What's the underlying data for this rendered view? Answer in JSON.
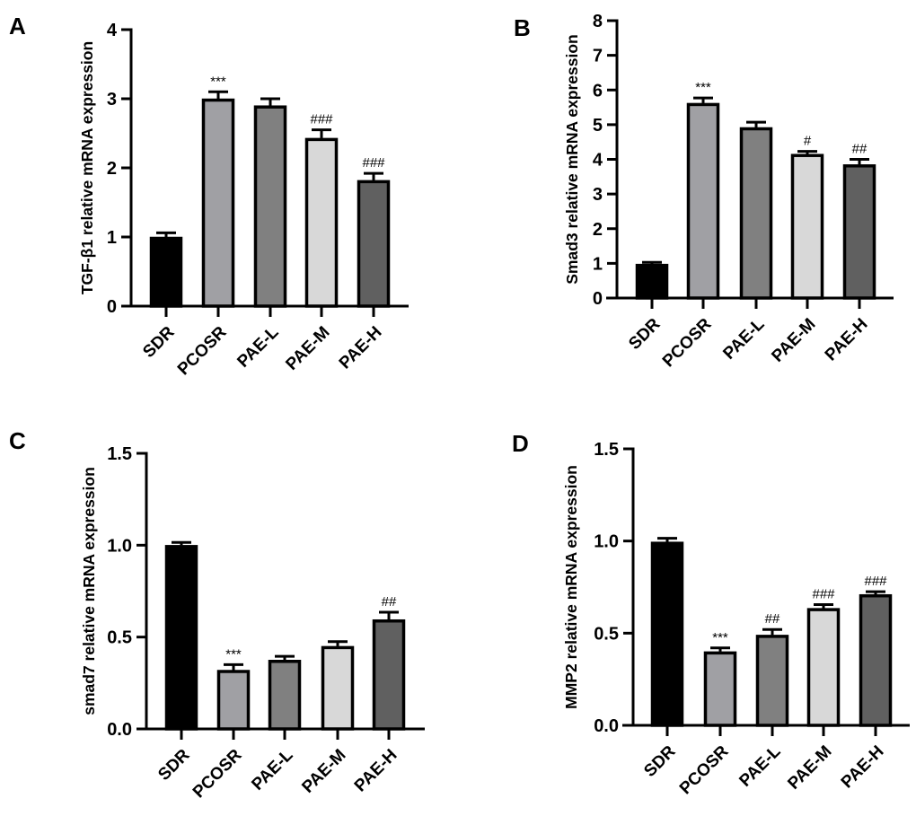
{
  "categories": [
    "SDR",
    "PCOSR",
    "PAE-L",
    "PAE-M",
    "PAE-H"
  ],
  "colors": {
    "SDR": "#000000",
    "PCOSR": "#a0a0a4",
    "PAE-L": "#808080",
    "PAE-M": "#d8d8d8",
    "PAE-H": "#606060",
    "outline": "#000000"
  },
  "chart_data": [
    {
      "type": "bar",
      "panel": "A",
      "ylabel": "TGF-β1 relative mRNA expression",
      "xlabel": "",
      "categories": [
        "SDR",
        "PCOSR",
        "PAE-L",
        "PAE-M",
        "PAE-H"
      ],
      "values": [
        1.0,
        3.0,
        2.9,
        2.43,
        1.82
      ],
      "errors": [
        0.06,
        0.1,
        0.1,
        0.12,
        0.1
      ],
      "annotations": [
        "",
        "***",
        "",
        "###",
        "###"
      ],
      "ylim": [
        0,
        4
      ],
      "yticks": [
        "0",
        "1",
        "2",
        "3",
        "4"
      ],
      "ytick_values": [
        0,
        1,
        2,
        3,
        4
      ]
    },
    {
      "type": "bar",
      "panel": "B",
      "ylabel": "Smad3 relative mRNA expression",
      "xlabel": "",
      "categories": [
        "SDR",
        "PCOSR",
        "PAE-L",
        "PAE-M",
        "PAE-H"
      ],
      "values": [
        0.98,
        5.62,
        4.92,
        4.15,
        3.85
      ],
      "errors": [
        0.05,
        0.15,
        0.15,
        0.08,
        0.15
      ],
      "annotations": [
        "",
        "***",
        "",
        "#",
        "##"
      ],
      "ylim": [
        0,
        8
      ],
      "yticks": [
        "0",
        "1",
        "2",
        "3",
        "4",
        "5",
        "6",
        "7",
        "8"
      ],
      "ytick_values": [
        0,
        1,
        2,
        3,
        4,
        5,
        6,
        7,
        8
      ]
    },
    {
      "type": "bar",
      "panel": "C",
      "ylabel": "smad7 relative mRNA expression",
      "xlabel": "",
      "categories": [
        "SDR",
        "PCOSR",
        "PAE-L",
        "PAE-M",
        "PAE-H"
      ],
      "values": [
        1.0,
        0.32,
        0.375,
        0.45,
        0.595
      ],
      "errors": [
        0.015,
        0.03,
        0.02,
        0.025,
        0.04
      ],
      "annotations": [
        "",
        "***",
        "",
        "",
        "##"
      ],
      "ylim": [
        0,
        1.5
      ],
      "yticks": [
        "0.0",
        "0.5",
        "1.0",
        "1.5"
      ],
      "ytick_values": [
        0,
        0.5,
        1.0,
        1.5
      ]
    },
    {
      "type": "bar",
      "panel": "D",
      "ylabel": "MMP2 relative mRNA expression",
      "xlabel": "",
      "categories": [
        "SDR",
        "PCOSR",
        "PAE-L",
        "PAE-M",
        "PAE-H"
      ],
      "values": [
        0.995,
        0.4,
        0.49,
        0.635,
        0.71
      ],
      "errors": [
        0.02,
        0.02,
        0.03,
        0.02,
        0.015
      ],
      "annotations": [
        "",
        "***",
        "##",
        "###",
        "###"
      ],
      "ylim": [
        0,
        1.5
      ],
      "yticks": [
        "0.0",
        "0.5",
        "1.0",
        "1.5"
      ],
      "ytick_values": [
        0,
        0.5,
        1.0,
        1.5
      ]
    }
  ]
}
